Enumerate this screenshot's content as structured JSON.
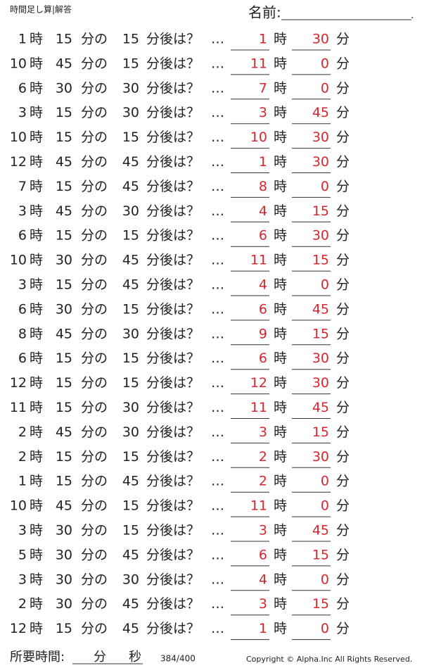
{
  "header": {
    "title": "時間足し算|解答",
    "name_label": "名前:",
    "name_end": "."
  },
  "labels": {
    "hour": "時",
    "minute_of": "分の",
    "later": "分後は？",
    "ellipsis": "…",
    "minute": "分"
  },
  "rows": [
    {
      "hour": 1,
      "minute": 15,
      "add": 15,
      "answer_hour": 1,
      "answer_minute": 30
    },
    {
      "hour": 10,
      "minute": 45,
      "add": 15,
      "answer_hour": 11,
      "answer_minute": 0
    },
    {
      "hour": 6,
      "minute": 30,
      "add": 30,
      "answer_hour": 7,
      "answer_minute": 0
    },
    {
      "hour": 3,
      "minute": 15,
      "add": 30,
      "answer_hour": 3,
      "answer_minute": 45
    },
    {
      "hour": 10,
      "minute": 15,
      "add": 15,
      "answer_hour": 10,
      "answer_minute": 30
    },
    {
      "hour": 12,
      "minute": 45,
      "add": 45,
      "answer_hour": 1,
      "answer_minute": 30
    },
    {
      "hour": 7,
      "minute": 15,
      "add": 45,
      "answer_hour": 8,
      "answer_minute": 0
    },
    {
      "hour": 3,
      "minute": 45,
      "add": 30,
      "answer_hour": 4,
      "answer_minute": 15
    },
    {
      "hour": 6,
      "minute": 15,
      "add": 15,
      "answer_hour": 6,
      "answer_minute": 30
    },
    {
      "hour": 10,
      "minute": 30,
      "add": 45,
      "answer_hour": 11,
      "answer_minute": 15
    },
    {
      "hour": 3,
      "minute": 15,
      "add": 45,
      "answer_hour": 4,
      "answer_minute": 0
    },
    {
      "hour": 6,
      "minute": 30,
      "add": 15,
      "answer_hour": 6,
      "answer_minute": 45
    },
    {
      "hour": 8,
      "minute": 45,
      "add": 30,
      "answer_hour": 9,
      "answer_minute": 15
    },
    {
      "hour": 6,
      "minute": 15,
      "add": 15,
      "answer_hour": 6,
      "answer_minute": 30
    },
    {
      "hour": 12,
      "minute": 15,
      "add": 15,
      "answer_hour": 12,
      "answer_minute": 30
    },
    {
      "hour": 11,
      "minute": 15,
      "add": 30,
      "answer_hour": 11,
      "answer_minute": 45
    },
    {
      "hour": 2,
      "minute": 45,
      "add": 30,
      "answer_hour": 3,
      "answer_minute": 15
    },
    {
      "hour": 2,
      "minute": 15,
      "add": 15,
      "answer_hour": 2,
      "answer_minute": 30
    },
    {
      "hour": 1,
      "minute": 15,
      "add": 45,
      "answer_hour": 2,
      "answer_minute": 0
    },
    {
      "hour": 10,
      "minute": 45,
      "add": 15,
      "answer_hour": 11,
      "answer_minute": 0
    },
    {
      "hour": 3,
      "minute": 30,
      "add": 15,
      "answer_hour": 3,
      "answer_minute": 45
    },
    {
      "hour": 5,
      "minute": 30,
      "add": 45,
      "answer_hour": 6,
      "answer_minute": 15
    },
    {
      "hour": 3,
      "minute": 30,
      "add": 30,
      "answer_hour": 4,
      "answer_minute": 0
    },
    {
      "hour": 2,
      "minute": 30,
      "add": 45,
      "answer_hour": 3,
      "answer_minute": 15
    },
    {
      "hour": 12,
      "minute": 15,
      "add": 45,
      "answer_hour": 1,
      "answer_minute": 0
    }
  ],
  "footer": {
    "time_label": "所要時間:",
    "minute": "分",
    "second": "秒",
    "score": "384/400",
    "copyright": "Copyright ©  Alpha.Inc All Rights Reserved."
  }
}
